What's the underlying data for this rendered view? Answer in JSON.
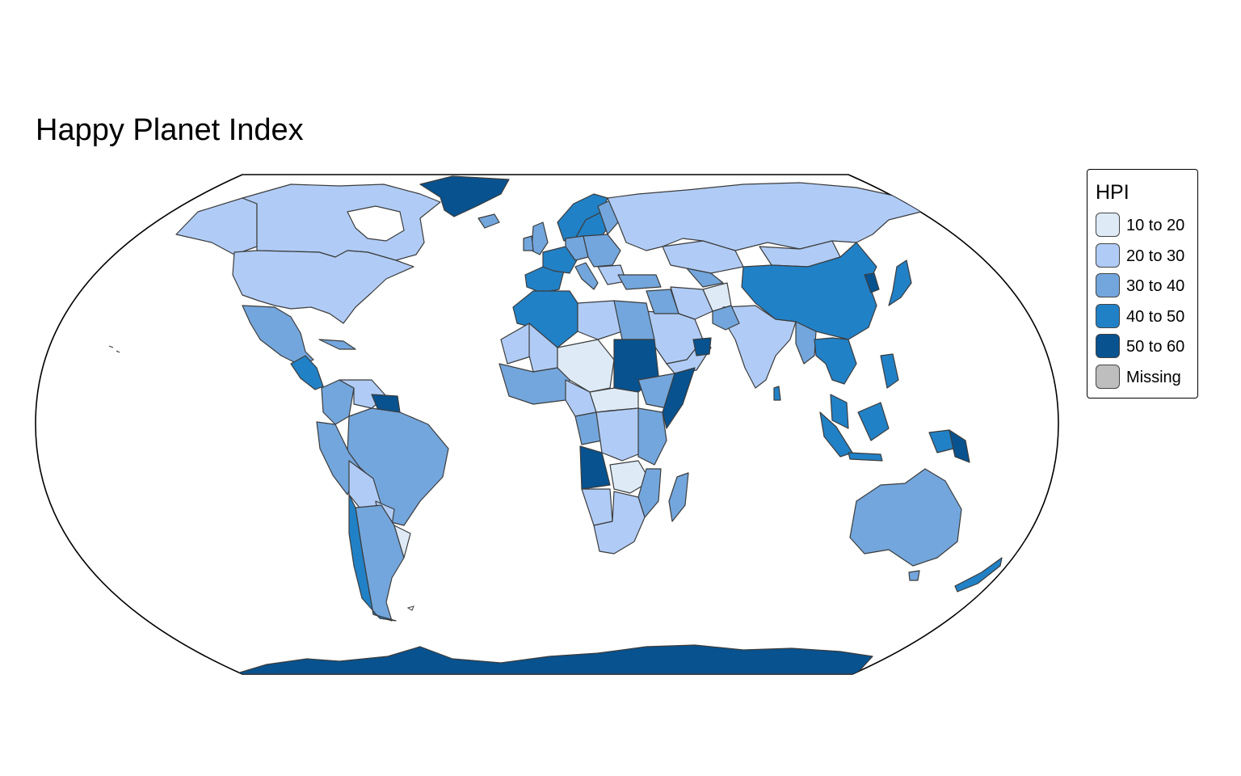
{
  "map": {
    "title": "Happy Planet Index",
    "projection": "eckert-iv",
    "fill_variable": "HPI",
    "legend": {
      "title": "HPI",
      "placement": "right",
      "classes": [
        {
          "label": "10 to 20",
          "color": "#deebf7"
        },
        {
          "label": "20 to 30",
          "color": "#b0ccf6"
        },
        {
          "label": "30 to 40",
          "color": "#73a6dc"
        },
        {
          "label": "40 to 50",
          "color": "#2181c6"
        },
        {
          "label": "50 to 60",
          "color": "#07528f"
        },
        {
          "label": "Missing",
          "color": "#bebebe"
        }
      ]
    },
    "style": {
      "border_color": "#3c3c3c",
      "background": "#ffffff",
      "ocean": "#ffffff"
    }
  }
}
